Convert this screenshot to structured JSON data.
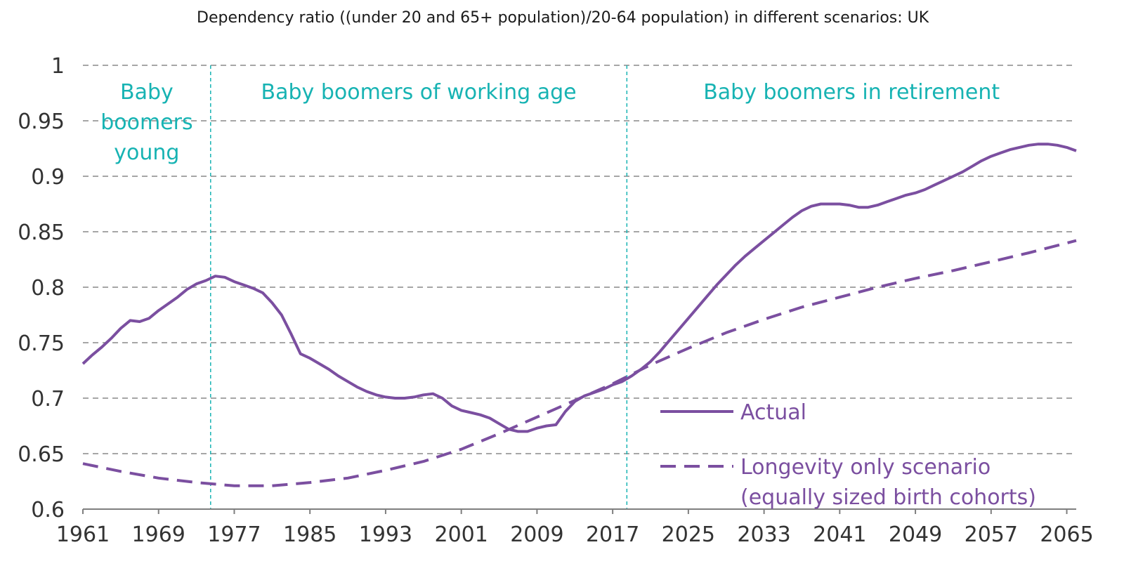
{
  "chart_data": {
    "type": "line",
    "title": "Dependency ratio ((under 20 and 65+ population)/20-64 population) in different scenarios: UK",
    "xlabel": "",
    "ylabel": "",
    "xlim": [
      1961,
      2066
    ],
    "ylim": [
      0.6,
      1.0
    ],
    "x_ticks": [
      1961,
      1969,
      1977,
      1985,
      1993,
      2001,
      2009,
      2017,
      2025,
      2033,
      2041,
      2049,
      2057,
      2065
    ],
    "y_ticks": [
      0.6,
      0.65,
      0.7,
      0.75,
      0.8,
      0.85,
      0.9,
      0.95,
      1
    ],
    "y_tick_labels": [
      "0.6",
      "0.65",
      "0.7",
      "0.75",
      "0.8",
      "0.85",
      "0.9",
      "0.95",
      "1"
    ],
    "grid": true,
    "series": [
      {
        "name": "Actual",
        "style": "solid",
        "color": "#7b4fa0",
        "x": [
          1961,
          1962,
          1963,
          1964,
          1965,
          1966,
          1967,
          1968,
          1969,
          1970,
          1971,
          1972,
          1973,
          1974,
          1975,
          1976,
          1977,
          1978,
          1979,
          1980,
          1981,
          1982,
          1983,
          1984,
          1985,
          1986,
          1987,
          1988,
          1989,
          1990,
          1991,
          1992,
          1993,
          1994,
          1995,
          1996,
          1997,
          1998,
          1999,
          2000,
          2001,
          2002,
          2003,
          2004,
          2005,
          2006,
          2007,
          2008,
          2009,
          2010,
          2011,
          2012,
          2013,
          2014,
          2015,
          2016,
          2017,
          2018,
          2019,
          2020,
          2021,
          2022,
          2023,
          2024,
          2025,
          2026,
          2027,
          2028,
          2029,
          2030,
          2031,
          2032,
          2033,
          2034,
          2035,
          2036,
          2037,
          2038,
          2039,
          2040,
          2041,
          2042,
          2043,
          2044,
          2045,
          2046,
          2047,
          2048,
          2049,
          2050,
          2051,
          2052,
          2053,
          2054,
          2055,
          2056,
          2057,
          2058,
          2059,
          2060,
          2061,
          2062,
          2063,
          2064,
          2065,
          2066
        ],
        "values": [
          0.731,
          0.739,
          0.746,
          0.754,
          0.763,
          0.77,
          0.769,
          0.772,
          0.779,
          0.785,
          0.791,
          0.798,
          0.803,
          0.806,
          0.81,
          0.809,
          0.805,
          0.802,
          0.799,
          0.795,
          0.786,
          0.775,
          0.758,
          0.74,
          0.736,
          0.731,
          0.726,
          0.72,
          0.715,
          0.71,
          0.706,
          0.703,
          0.701,
          0.7,
          0.7,
          0.701,
          0.703,
          0.704,
          0.7,
          0.693,
          0.689,
          0.687,
          0.685,
          0.682,
          0.677,
          0.672,
          0.67,
          0.67,
          0.673,
          0.675,
          0.676,
          0.688,
          0.697,
          0.702,
          0.705,
          0.708,
          0.712,
          0.715,
          0.72,
          0.726,
          0.733,
          0.742,
          0.752,
          0.762,
          0.772,
          0.782,
          0.792,
          0.802,
          0.811,
          0.82,
          0.828,
          0.835,
          0.842,
          0.849,
          0.856,
          0.863,
          0.869,
          0.873,
          0.875,
          0.875,
          0.875,
          0.874,
          0.872,
          0.872,
          0.874,
          0.877,
          0.88,
          0.883,
          0.885,
          0.888,
          0.892,
          0.896,
          0.9,
          0.904,
          0.909,
          0.914,
          0.918,
          0.921,
          0.924,
          0.926,
          0.928,
          0.929,
          0.929,
          0.928,
          0.926,
          0.923
        ]
      },
      {
        "name": "Longevity only scenario (equally sized birth cohorts)",
        "style": "dashed",
        "color": "#7b4fa0",
        "x": [
          1961,
          1965,
          1969,
          1973,
          1977,
          1981,
          1985,
          1989,
          1993,
          1997,
          2001,
          2005,
          2009,
          2013,
          2017,
          2021,
          2025,
          2029,
          2033,
          2037,
          2041,
          2045,
          2049,
          2053,
          2057,
          2061,
          2066
        ],
        "values": [
          0.641,
          0.634,
          0.628,
          0.624,
          0.621,
          0.621,
          0.624,
          0.628,
          0.635,
          0.643,
          0.654,
          0.668,
          0.683,
          0.698,
          0.713,
          0.73,
          0.745,
          0.759,
          0.771,
          0.782,
          0.791,
          0.8,
          0.808,
          0.815,
          0.823,
          0.831,
          0.842
        ]
      }
    ],
    "legend": {
      "position": "bottom-right",
      "entries": [
        "Actual",
        "Longevity only scenario",
        "(equally sized birth cohorts)"
      ]
    },
    "eras": [
      {
        "label_lines": [
          "Baby",
          "boomers",
          "young"
        ],
        "start": 1961,
        "end": 1974.5
      },
      {
        "label_lines": [
          "Baby boomers of working age"
        ],
        "start": 1974.5,
        "end": 2018.5
      },
      {
        "label_lines": [
          "Baby boomers in retirement"
        ],
        "start": 2018.5,
        "end": 2066
      }
    ],
    "dividers": [
      1974.5,
      2018.5
    ],
    "colors": {
      "line": "#7b4fa0",
      "era_text": "#17b3b3",
      "grid": "#a6a6a6"
    }
  }
}
